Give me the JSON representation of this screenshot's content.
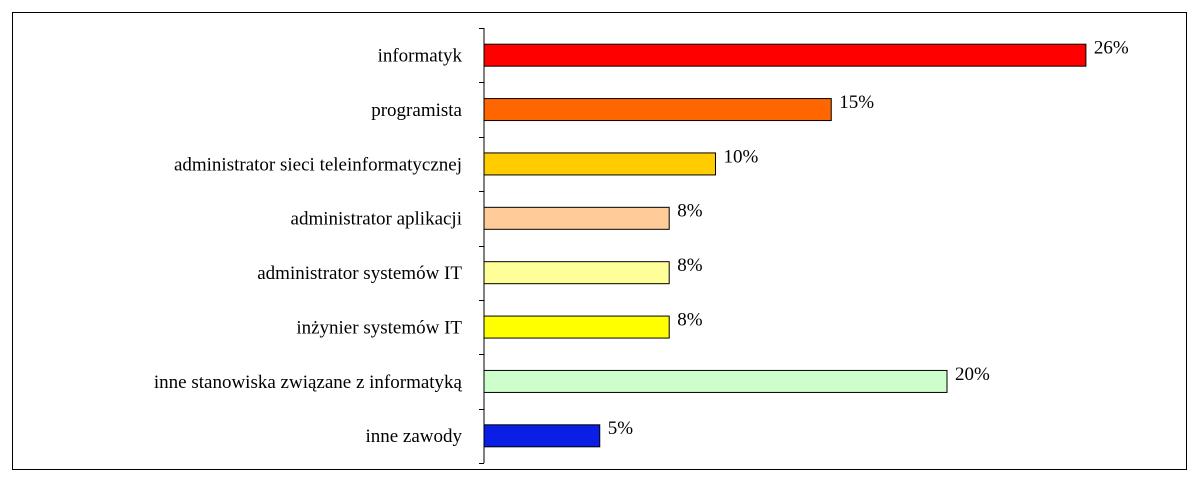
{
  "chart_data": {
    "type": "bar",
    "orientation": "horizontal",
    "categories": [
      "informatyk",
      "programista",
      "administrator sieci teleinformatycznej",
      "administrator aplikacji",
      "administrator systemów IT",
      "inżynier systemów IT",
      "inne stanowiska związane z informatyką",
      "inne zawody"
    ],
    "values": [
      26,
      15,
      10,
      8,
      8,
      8,
      20,
      5
    ],
    "value_labels": [
      "26%",
      "15%",
      "10%",
      "8%",
      "8%",
      "8%",
      "20%",
      "5%"
    ],
    "colors": [
      "#ff0000",
      "#ff6600",
      "#ffcc00",
      "#ffcc99",
      "#ffff99",
      "#ffff00",
      "#ccffcc",
      "#0a1ee6"
    ]
  }
}
